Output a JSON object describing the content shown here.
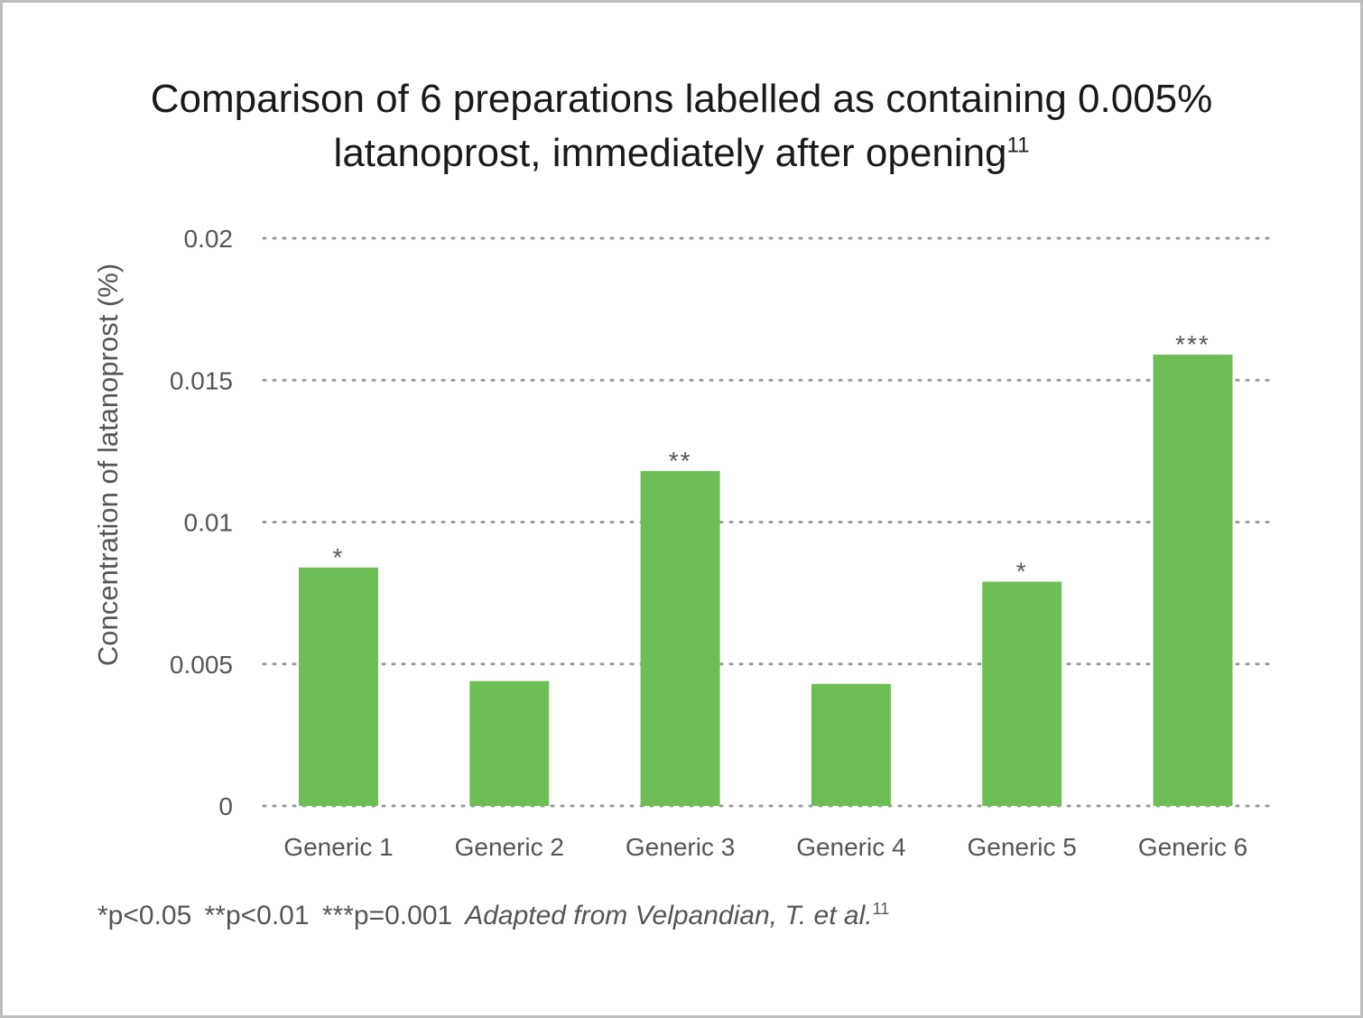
{
  "title": {
    "line1": "Comparison of 6 preparations labelled as containing 0.005%",
    "line2": "latanoprost, immediately after opening",
    "ref": "11"
  },
  "footnote": {
    "pvalues": "*p<0.05  **p<0.01  ***p=0.001",
    "source": "Adapted from Velpandian, T. et al.",
    "ref": "11"
  },
  "colors": {
    "bar": "#6dbf55",
    "grid": "#9a9a9a",
    "text": "#555555",
    "title": "#1a1a1a"
  },
  "chart_data": {
    "type": "bar",
    "title": "Comparison of 6 preparations labelled as containing 0.005% latanoprost, immediately after opening",
    "xlabel": "",
    "ylabel": "Concentration of latanoprost (%)",
    "ylim": [
      0,
      0.02
    ],
    "yticks": [
      0,
      0.005,
      0.01,
      0.015,
      0.02
    ],
    "ytick_labels": [
      "0",
      "0.005",
      "0.01",
      "0.015",
      "0.02"
    ],
    "grid": "horizontal dotted",
    "categories": [
      "Generic 1",
      "Generic 2",
      "Generic 3",
      "Generic 4",
      "Generic 5",
      "Generic 6"
    ],
    "values": [
      0.0084,
      0.0044,
      0.0118,
      0.0043,
      0.0079,
      0.0159
    ],
    "significance": [
      "*",
      "",
      "**",
      "",
      "*",
      "***"
    ]
  }
}
